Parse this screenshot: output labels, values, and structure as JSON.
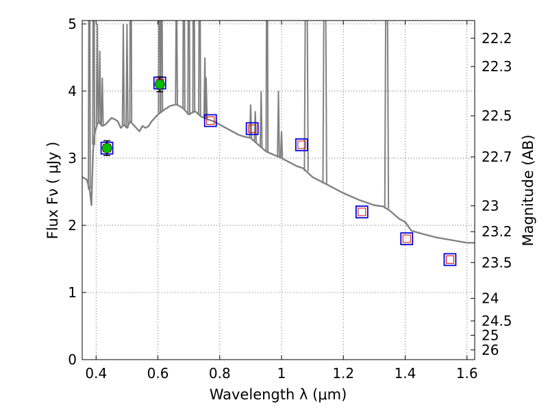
{
  "chart_data": {
    "type": "line",
    "title": "",
    "xlabel": "Wavelength  λ (μm)",
    "ylabel": "Flux  Fν  ( μJy )",
    "y2label": "Magnitude (AB)",
    "xlim": [
      0.355,
      1.625
    ],
    "ylim": [
      0,
      5.05
    ],
    "grid": true,
    "xticks": [
      0.4,
      0.6,
      0.8,
      1.0,
      1.2,
      1.4,
      1.6
    ],
    "xtick_labels": [
      "0.4",
      "0.6",
      "0.8",
      "1",
      "1.2",
      "1.4",
      "1.6"
    ],
    "yticks": [
      0,
      1,
      2,
      3,
      4,
      5
    ],
    "ytick_labels": [
      "0",
      "1",
      "2",
      "3",
      "4",
      "5"
    ],
    "y2ticks": [
      22.2,
      22.3,
      22.5,
      22.7,
      23,
      23.2,
      23.5,
      24,
      24.5,
      25,
      26
    ],
    "y2tick_labels": [
      "22.2",
      "22.3",
      "22.5",
      "22.7",
      "23",
      "23.2",
      "23.5",
      "24",
      "24.5",
      "25",
      "26"
    ],
    "colors": {
      "spectrum": "#808080",
      "observed": "#00bb00",
      "box": "#0000dd",
      "model": "#dd0000",
      "grid": "#444444"
    },
    "series": [
      {
        "role": "model-spectrum",
        "x": [
          0.355,
          0.37,
          0.38,
          0.385,
          0.39,
          0.395,
          0.398,
          0.4,
          0.405,
          0.41,
          0.415,
          0.42,
          0.43,
          0.44,
          0.45,
          0.46,
          0.47,
          0.48,
          0.49,
          0.5,
          0.51,
          0.52,
          0.53,
          0.54,
          0.55,
          0.56,
          0.57,
          0.58,
          0.59,
          0.6,
          0.62,
          0.64,
          0.66,
          0.68,
          0.7,
          0.72,
          0.74,
          0.76,
          0.78,
          0.8,
          0.82,
          0.84,
          0.86,
          0.88,
          0.9,
          0.92,
          0.95,
          1.0,
          1.05,
          1.07,
          1.1,
          1.15,
          1.2,
          1.25,
          1.3,
          1.33,
          1.35,
          1.38,
          1.4,
          1.42,
          1.45,
          1.5,
          1.55,
          1.6,
          1.625
        ],
        "y": [
          2.72,
          2.68,
          2.5,
          2.3,
          3.1,
          3.35,
          3.42,
          3.45,
          3.52,
          3.55,
          3.5,
          3.48,
          3.5,
          3.55,
          3.6,
          3.58,
          3.55,
          3.45,
          3.5,
          3.45,
          3.55,
          3.5,
          3.45,
          3.4,
          3.48,
          3.45,
          3.48,
          3.55,
          3.6,
          3.65,
          3.72,
          3.78,
          3.8,
          3.75,
          3.65,
          3.7,
          3.62,
          3.58,
          3.55,
          3.5,
          3.45,
          3.4,
          3.35,
          3.32,
          3.3,
          3.22,
          3.1,
          3.0,
          2.88,
          2.85,
          2.72,
          2.6,
          2.48,
          2.38,
          2.3,
          2.28,
          2.22,
          2.1,
          2.05,
          1.92,
          1.88,
          1.82,
          1.78,
          1.74,
          1.74
        ]
      },
      {
        "role": "observed-flux",
        "x": [
          0.435,
          0.606
        ],
        "y": [
          3.15,
          4.1
        ],
        "err": [
          0.11,
          0.11
        ]
      },
      {
        "role": "model-synthetic-flux",
        "x": [
          0.435,
          0.606,
          0.77,
          0.905,
          1.065,
          1.26,
          1.405,
          1.545
        ],
        "y": [
          3.15,
          4.12,
          3.56,
          3.44,
          3.2,
          2.2,
          1.8,
          1.49
        ]
      }
    ]
  }
}
